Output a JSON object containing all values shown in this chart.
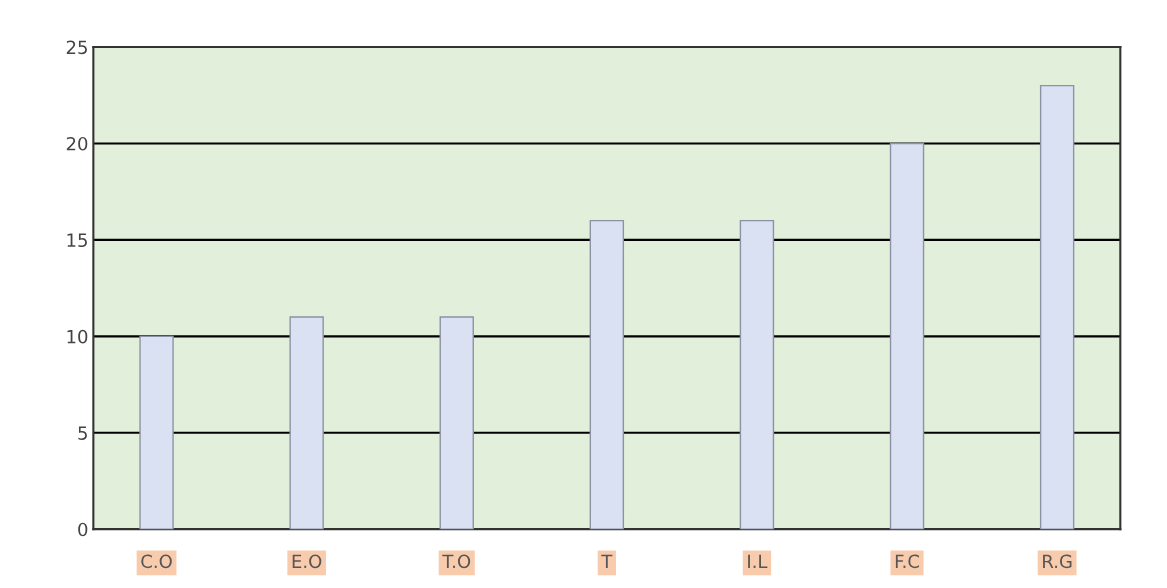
{
  "chart_data": {
    "type": "bar",
    "categories": [
      "C.O",
      "E.O",
      "T.O",
      "T",
      "I.L",
      "F.C",
      "R.G"
    ],
    "values": [
      10,
      11,
      11,
      16,
      16,
      20,
      23
    ],
    "color": "#dae1f2",
    "ylim": [
      0,
      25
    ],
    "yticks": [
      0,
      5,
      10,
      15,
      20,
      25
    ],
    "grid": "y"
  }
}
